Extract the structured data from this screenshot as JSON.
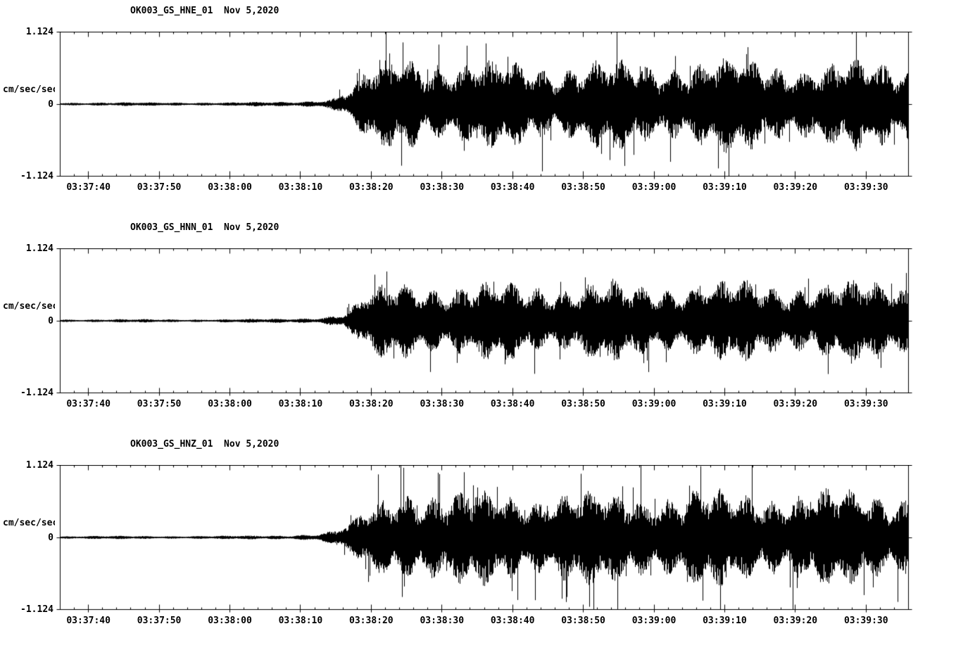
{
  "colors": {
    "trace": "#000000",
    "background": "#ffffff"
  },
  "axes": {
    "y_max_label": "1.124",
    "y_zero_label": "0",
    "y_min_label": "-1.124",
    "y_unit": "cm/sec/sec",
    "ylim": [
      -1.124,
      1.124
    ],
    "x_tick_labels": [
      "03:37:40",
      "03:37:50",
      "03:38:00",
      "03:38:10",
      "03:38:20",
      "03:38:30",
      "03:38:40",
      "03:38:50",
      "03:39:00",
      "03:39:10",
      "03:39:20",
      "03:39:30"
    ],
    "x_first_tick_offset_seconds": 4,
    "x_tick_interval_seconds": 10,
    "x_total_seconds": 120,
    "grid": false,
    "legend": "none"
  },
  "chart_data": [
    {
      "type": "line",
      "title": "OK003_GS_HNE_01  Nov 5,2020",
      "date": "Nov 5,2020",
      "ylabel": "cm/sec/sec",
      "ylim": [
        -1.124,
        1.124
      ],
      "x_start": "03:37:36",
      "x_end": "03:39:36",
      "seed": 12345,
      "spike_probability": 0.06,
      "spike_gain": 1.1,
      "envelope": [
        [
          0,
          0.022
        ],
        [
          24,
          0.024
        ],
        [
          32,
          0.032
        ],
        [
          36,
          0.05
        ],
        [
          39,
          0.1
        ],
        [
          41,
          0.22
        ],
        [
          43,
          0.42
        ],
        [
          45,
          0.55
        ],
        [
          47,
          0.62
        ],
        [
          50,
          0.68
        ],
        [
          53,
          0.58
        ],
        [
          58,
          0.55
        ],
        [
          64,
          0.58
        ],
        [
          70,
          0.55
        ],
        [
          76,
          0.58
        ],
        [
          82,
          0.55
        ],
        [
          88,
          0.6
        ],
        [
          94,
          0.62
        ],
        [
          100,
          0.58
        ],
        [
          106,
          0.56
        ],
        [
          112,
          0.58
        ],
        [
          120,
          0.58
        ]
      ]
    },
    {
      "type": "line",
      "title": "OK003_GS_HNN_01  Nov 5,2020",
      "date": "Nov 5,2020",
      "ylabel": "cm/sec/sec",
      "ylim": [
        -1.124,
        1.124
      ],
      "x_start": "03:37:36",
      "x_end": "03:39:36",
      "seed": 67890,
      "spike_probability": 0.05,
      "spike_gain": 0.9,
      "envelope": [
        [
          0,
          0.02
        ],
        [
          24,
          0.022
        ],
        [
          33,
          0.03
        ],
        [
          37,
          0.05
        ],
        [
          40,
          0.1
        ],
        [
          42,
          0.25
        ],
        [
          44,
          0.42
        ],
        [
          47,
          0.52
        ],
        [
          50,
          0.58
        ],
        [
          53,
          0.52
        ],
        [
          58,
          0.48
        ],
        [
          64,
          0.52
        ],
        [
          70,
          0.5
        ],
        [
          76,
          0.52
        ],
        [
          82,
          0.48
        ],
        [
          88,
          0.52
        ],
        [
          94,
          0.54
        ],
        [
          100,
          0.5
        ],
        [
          106,
          0.52
        ],
        [
          113,
          0.54
        ],
        [
          120,
          0.52
        ]
      ]
    },
    {
      "type": "line",
      "title": "OK003_GS_HNZ_01  Nov 5,2020",
      "date": "Nov 5,2020",
      "ylabel": "cm/sec/sec",
      "ylim": [
        -1.124,
        1.124
      ],
      "x_start": "03:37:36",
      "x_end": "03:39:36",
      "seed": 24680,
      "spike_probability": 0.08,
      "spike_gain": 1.3,
      "envelope": [
        [
          0,
          0.02
        ],
        [
          24,
          0.022
        ],
        [
          32,
          0.03
        ],
        [
          36,
          0.05
        ],
        [
          39,
          0.1
        ],
        [
          41,
          0.2
        ],
        [
          43,
          0.35
        ],
        [
          45,
          0.5
        ],
        [
          47,
          0.62
        ],
        [
          49,
          0.72
        ],
        [
          51,
          0.68
        ],
        [
          55,
          0.6
        ],
        [
          60,
          0.62
        ],
        [
          66,
          0.6
        ],
        [
          72,
          0.63
        ],
        [
          78,
          0.6
        ],
        [
          84,
          0.62
        ],
        [
          90,
          0.64
        ],
        [
          96,
          0.6
        ],
        [
          102,
          0.63
        ],
        [
          108,
          0.64
        ],
        [
          114,
          0.62
        ],
        [
          120,
          0.63
        ]
      ]
    }
  ]
}
